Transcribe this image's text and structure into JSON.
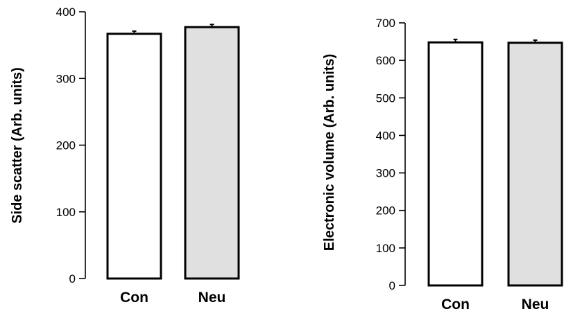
{
  "chart_data": [
    {
      "type": "bar",
      "ylabel": "Side scatter (Arb. units)",
      "categories": [
        "Con",
        "Neu"
      ],
      "values": [
        367,
        377
      ],
      "errors": [
        4,
        4
      ],
      "bar_colors": [
        "#ffffff",
        "#e0e0e0"
      ],
      "ylim": [
        0,
        400
      ],
      "yticks": [
        0,
        100,
        200,
        300,
        400
      ]
    },
    {
      "type": "bar",
      "ylabel": "Electronic volume (Arb. units)",
      "categories": [
        "Con",
        "Neu"
      ],
      "values": [
        648,
        647
      ],
      "errors": [
        8,
        7
      ],
      "bar_colors": [
        "#ffffff",
        "#e0e0e0"
      ],
      "ylim": [
        0,
        700
      ],
      "yticks": [
        0,
        100,
        200,
        300,
        400,
        500,
        600,
        700
      ]
    }
  ]
}
